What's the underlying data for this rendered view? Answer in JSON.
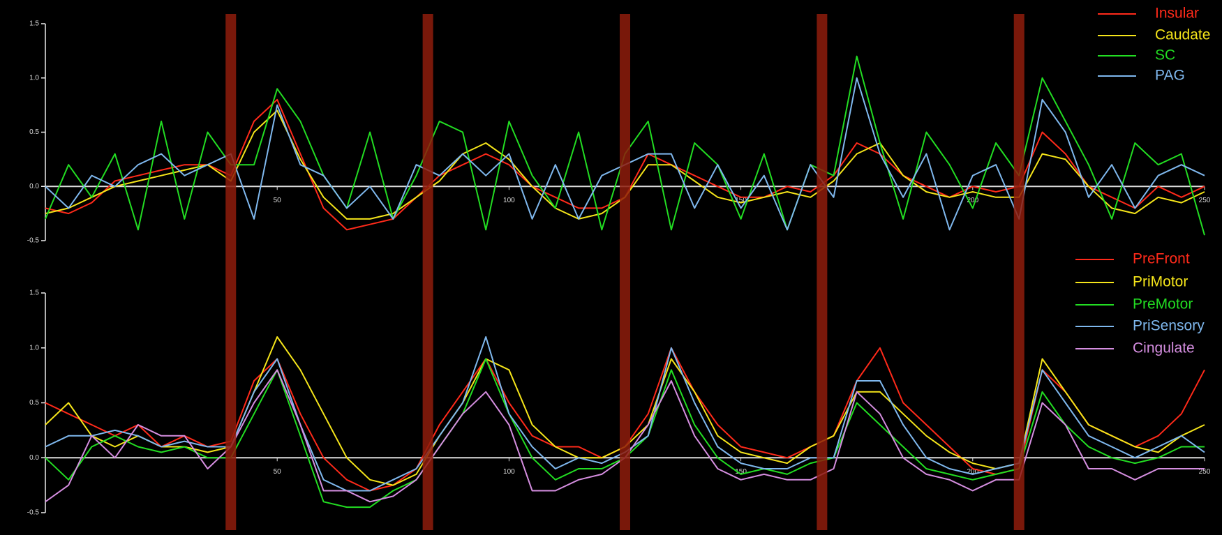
{
  "chart_data": [
    {
      "type": "line",
      "xlim": [
        0,
        250
      ],
      "ylim": [
        -0.5,
        1.5
      ],
      "yticks": [
        -0.5,
        {
          "value": 0,
          "label": "0.0"
        },
        0.5,
        {
          "value": 1,
          "label": "1.0"
        },
        1.5
      ],
      "xticks": [
        50,
        100,
        150,
        200,
        250
      ],
      "legend": "upper right",
      "stimulus_onsets": [
        40,
        82.5,
        125,
        167.5,
        210
      ],
      "stimulus_color": "#8e1c0c",
      "x": [
        0,
        5,
        10,
        15,
        20,
        25,
        30,
        35,
        40,
        45,
        50,
        55,
        60,
        65,
        70,
        75,
        80,
        85,
        90,
        95,
        100,
        105,
        110,
        115,
        120,
        125,
        130,
        135,
        140,
        145,
        150,
        155,
        160,
        165,
        170,
        175,
        180,
        185,
        190,
        195,
        200,
        205,
        210,
        215,
        220,
        225,
        230,
        235,
        240,
        245,
        250
      ],
      "series": [
        {
          "name": "Insular",
          "color": "#ff2a1a",
          "values": [
            -0.2,
            -0.25,
            -0.15,
            0.05,
            0.1,
            0.15,
            0.2,
            0.2,
            0.1,
            0.6,
            0.8,
            0.3,
            -0.2,
            -0.4,
            -0.35,
            -0.3,
            -0.1,
            0.1,
            0.2,
            0.3,
            0.2,
            0,
            -0.1,
            -0.2,
            -0.2,
            -0.1,
            0.3,
            0.2,
            0.1,
            0,
            -0.1,
            -0.1,
            0,
            -0.05,
            0.1,
            0.4,
            0.3,
            0.1,
            0,
            -0.1,
            0,
            -0.05,
            0,
            0.5,
            0.3,
            0,
            -0.1,
            -0.2,
            0,
            -0.1,
            0
          ]
        },
        {
          "name": "Caudate",
          "color": "#f5e51a",
          "values": [
            -0.25,
            -0.2,
            -0.1,
            0,
            0.05,
            0.1,
            0.15,
            0.2,
            0.05,
            0.5,
            0.7,
            0.25,
            -0.1,
            -0.3,
            -0.3,
            -0.25,
            -0.1,
            0.05,
            0.3,
            0.4,
            0.25,
            0,
            -0.2,
            -0.3,
            -0.25,
            -0.1,
            0.2,
            0.2,
            0.05,
            -0.1,
            -0.15,
            -0.1,
            -0.05,
            -0.1,
            0.05,
            0.3,
            0.4,
            0.1,
            -0.05,
            -0.1,
            -0.05,
            -0.1,
            -0.1,
            0.3,
            0.25,
            0,
            -0.2,
            -0.25,
            -0.1,
            -0.15,
            -0.05
          ]
        },
        {
          "name": "SC",
          "color": "#22dd22",
          "values": [
            -0.3,
            0.2,
            -0.1,
            0.3,
            -0.4,
            0.6,
            -0.3,
            0.5,
            0.2,
            0.2,
            0.9,
            0.6,
            0.1,
            -0.2,
            0.5,
            -0.3,
            0.1,
            0.6,
            0.5,
            -0.4,
            0.6,
            0.1,
            -0.2,
            0.5,
            -0.4,
            0.3,
            0.6,
            -0.4,
            0.4,
            0.2,
            -0.3,
            0.3,
            -0.4,
            0.2,
            0.1,
            1.2,
            0.4,
            -0.3,
            0.5,
            0.2,
            -0.2,
            0.4,
            0.1,
            1.0,
            0.6,
            0.2,
            -0.3,
            0.4,
            0.2,
            0.3,
            -0.45
          ]
        },
        {
          "name": "PAG",
          "color": "#7fb8ee",
          "values": [
            0,
            -0.2,
            0.1,
            0,
            0.2,
            0.3,
            0.1,
            0.2,
            0.3,
            -0.3,
            0.75,
            0.2,
            0.1,
            -0.2,
            0,
            -0.3,
            0.2,
            0.1,
            0.3,
            0.1,
            0.3,
            -0.3,
            0.2,
            -0.3,
            0.1,
            0.2,
            0.3,
            0.3,
            -0.2,
            0.2,
            -0.2,
            0.1,
            -0.4,
            0.2,
            -0.1,
            1.0,
            0.3,
            -0.1,
            0.3,
            -0.4,
            0.1,
            0.2,
            -0.3,
            0.8,
            0.5,
            -0.1,
            0.2,
            -0.2,
            0.1,
            0.2,
            0.1
          ]
        }
      ]
    },
    {
      "type": "line",
      "xlim": [
        0,
        250
      ],
      "ylim": [
        -0.5,
        1.5
      ],
      "yticks": [
        -0.5,
        {
          "value": 0,
          "label": "0.0"
        },
        0.5,
        {
          "value": 1,
          "label": "1.0"
        },
        1.5
      ],
      "xticks": [
        50,
        100,
        150,
        200,
        250
      ],
      "legend": "upper right",
      "x": [
        0,
        5,
        10,
        15,
        20,
        25,
        30,
        35,
        40,
        45,
        50,
        55,
        60,
        65,
        70,
        75,
        80,
        85,
        90,
        95,
        100,
        105,
        110,
        115,
        120,
        125,
        130,
        135,
        140,
        145,
        150,
        155,
        160,
        165,
        170,
        175,
        180,
        185,
        190,
        195,
        200,
        205,
        210,
        215,
        220,
        225,
        230,
        235,
        240,
        245,
        250
      ],
      "series": [
        {
          "name": "PreFront",
          "color": "#ff2a1a",
          "values": [
            0.5,
            0.4,
            0.3,
            0.2,
            0.3,
            0.1,
            0.2,
            0.1,
            0.15,
            0.7,
            0.9,
            0.4,
            0,
            -0.2,
            -0.3,
            -0.25,
            -0.1,
            0.3,
            0.6,
            0.9,
            0.5,
            0.2,
            0.1,
            0.1,
            0,
            0.1,
            0.4,
            1.0,
            0.6,
            0.3,
            0.1,
            0.05,
            0,
            0.1,
            0.2,
            0.7,
            1.0,
            0.5,
            0.3,
            0.1,
            -0.1,
            -0.15,
            -0.1,
            0.8,
            0.6,
            0.3,
            0.2,
            0.1,
            0.2,
            0.4,
            0.8
          ]
        },
        {
          "name": "PriMotor",
          "color": "#f5e51a",
          "values": [
            0.3,
            0.5,
            0.2,
            0.1,
            0.2,
            0.1,
            0.1,
            0.05,
            0.1,
            0.6,
            1.1,
            0.8,
            0.4,
            0,
            -0.2,
            -0.25,
            -0.15,
            0.2,
            0.5,
            0.9,
            0.8,
            0.3,
            0.1,
            0,
            0,
            0.1,
            0.3,
            0.9,
            0.6,
            0.2,
            0.05,
            0,
            -0.05,
            0.1,
            0.2,
            0.6,
            0.6,
            0.4,
            0.2,
            0.05,
            -0.05,
            -0.1,
            -0.05,
            0.9,
            0.6,
            0.3,
            0.2,
            0.1,
            0.05,
            0.2,
            0.3
          ]
        },
        {
          "name": "PreMotor",
          "color": "#22dd22",
          "values": [
            0,
            -0.2,
            0.1,
            0.2,
            0.1,
            0.05,
            0.1,
            0,
            0,
            0.4,
            0.8,
            0.2,
            -0.4,
            -0.45,
            -0.45,
            -0.3,
            -0.2,
            0.1,
            0.4,
            0.9,
            0.4,
            0,
            -0.2,
            -0.1,
            -0.1,
            0,
            0.2,
            0.8,
            0.3,
            0,
            -0.15,
            -0.1,
            -0.15,
            -0.05,
            0,
            0.5,
            0.3,
            0.1,
            -0.1,
            -0.15,
            -0.2,
            -0.15,
            -0.1,
            0.6,
            0.3,
            0.1,
            0,
            -0.05,
            0,
            0.1,
            0.1
          ]
        },
        {
          "name": "PriSensory",
          "color": "#7fb8ee",
          "values": [
            0.1,
            0.2,
            0.2,
            0.25,
            0.2,
            0.1,
            0.15,
            0.1,
            0.1,
            0.6,
            0.9,
            0.3,
            -0.2,
            -0.3,
            -0.3,
            -0.2,
            -0.1,
            0.2,
            0.5,
            1.1,
            0.4,
            0.1,
            -0.1,
            0,
            -0.05,
            0.05,
            0.2,
            1.0,
            0.5,
            0.1,
            -0.05,
            -0.1,
            -0.1,
            0,
            0,
            0.7,
            0.7,
            0.3,
            0,
            -0.1,
            -0.15,
            -0.1,
            -0.05,
            0.8,
            0.5,
            0.2,
            0.1,
            0,
            0.1,
            0.2,
            0.05
          ]
        },
        {
          "name": "Cingulate",
          "color": "#d58ee0",
          "values": [
            -0.4,
            -0.25,
            0.2,
            0,
            0.3,
            0.2,
            0.2,
            -0.1,
            0.1,
            0.5,
            0.8,
            0.3,
            -0.3,
            -0.3,
            -0.4,
            -0.35,
            -0.2,
            0.1,
            0.4,
            0.6,
            0.3,
            -0.3,
            -0.3,
            -0.2,
            -0.15,
            0,
            0.3,
            0.7,
            0.2,
            -0.1,
            -0.2,
            -0.15,
            -0.2,
            -0.2,
            -0.1,
            0.6,
            0.4,
            0,
            -0.15,
            -0.2,
            -0.3,
            -0.2,
            -0.2,
            0.5,
            0.3,
            -0.1,
            -0.1,
            -0.2,
            -0.1,
            -0.1,
            -0.1
          ]
        }
      ]
    }
  ]
}
